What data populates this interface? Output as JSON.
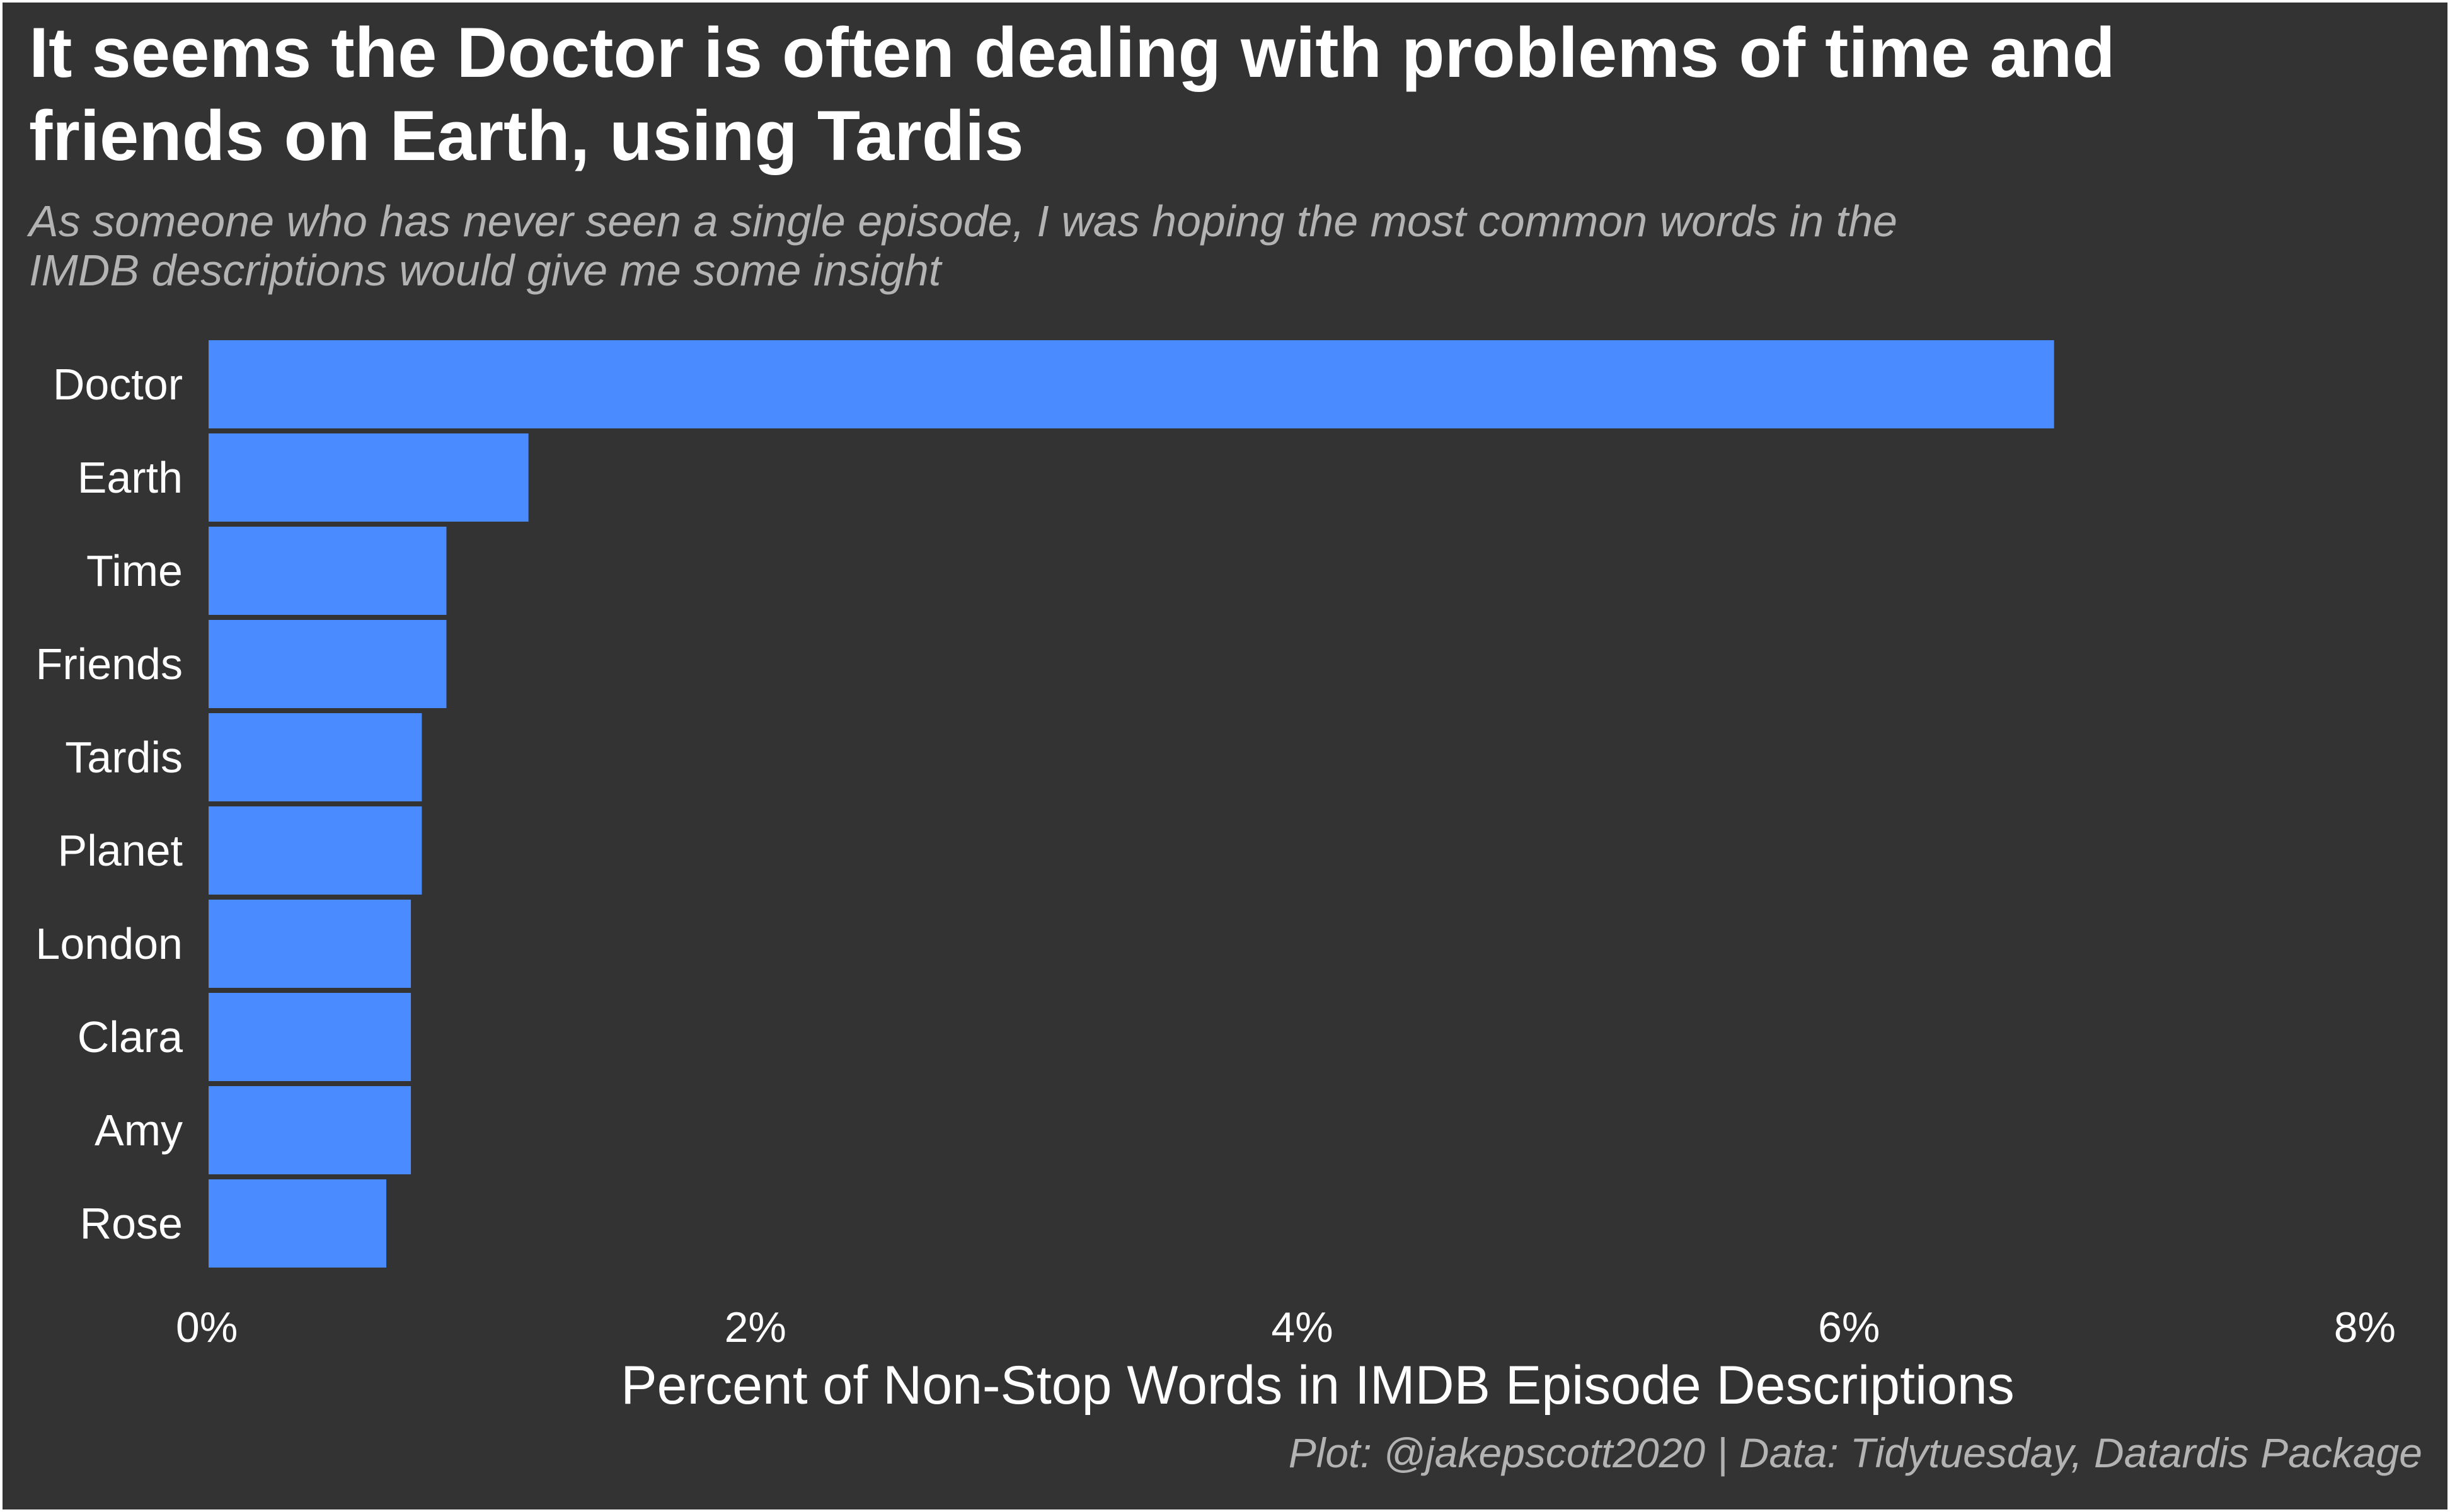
{
  "title": "It seems the Doctor is often dealing with problems of time and friends on Earth, using Tardis",
  "subtitle": "As someone who has never seen a single episode, I was hoping the most common words in the IMDB descriptions would give me some insight",
  "caption": "Plot: @jakepscott2020 | Data: Tidytuesday, Datardis Package",
  "colors": {
    "background": "#333333",
    "bar": "#4a8cff",
    "text": "#ffffff",
    "muted_text": "#b3b3b3"
  },
  "chart_data": {
    "type": "bar",
    "orientation": "horizontal",
    "categories": [
      "Doctor",
      "Earth",
      "Time",
      "Friends",
      "Tardis",
      "Planet",
      "London",
      "Clara",
      "Amy",
      "Rose"
    ],
    "values": [
      6.75,
      1.17,
      0.87,
      0.87,
      0.78,
      0.78,
      0.74,
      0.74,
      0.74,
      0.65
    ],
    "xlabel": "Percent of Non-Stop Words in IMDB Episode Descriptions",
    "ylabel": "",
    "xlim": [
      0,
      8
    ],
    "xticks": [
      0,
      2,
      4,
      6,
      8
    ],
    "xtick_labels": [
      "0%",
      "2%",
      "4%",
      "6%",
      "8%"
    ],
    "grid": false,
    "legend": "none"
  }
}
